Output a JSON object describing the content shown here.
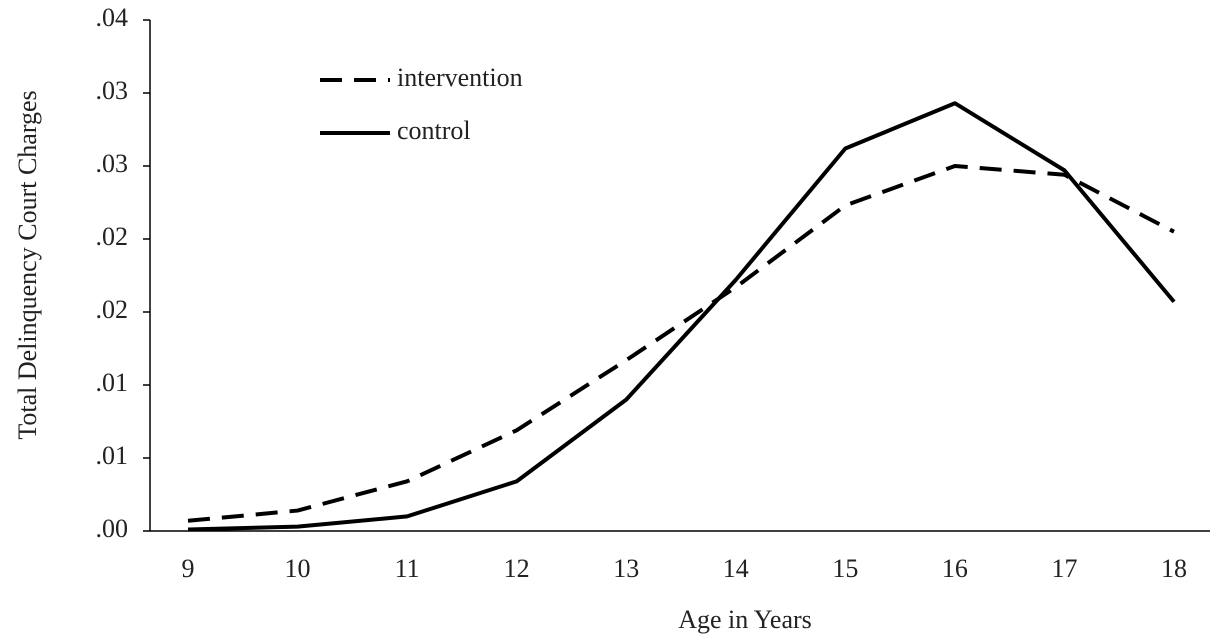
{
  "chart_data": {
    "type": "line",
    "xlabel": "Age in Years",
    "ylabel": "Total Delinquency Court Charges",
    "categories": [
      "9",
      "10",
      "11",
      "12",
      "13",
      "14",
      "15",
      "16",
      "17",
      "18"
    ],
    "series": [
      {
        "name": "intervention",
        "color": "#000000",
        "style": "dashed",
        "values": [
          0.0007,
          0.0014,
          0.0034,
          0.0069,
          0.0117,
          0.0167,
          0.0223,
          0.025,
          0.0244,
          0.0205
        ]
      },
      {
        "name": "control",
        "color": "#000000",
        "style": "solid",
        "values": [
          0.0001,
          0.0003,
          0.001,
          0.0034,
          0.009,
          0.0172,
          0.0262,
          0.0293,
          0.0247,
          0.0157
        ]
      }
    ],
    "ylim": [
      0,
      0.035
    ],
    "yticks": [
      {
        "value": 0,
        "label": ".00"
      },
      {
        "value": 0.005,
        "label": ".01"
      },
      {
        "value": 0.01,
        "label": ".01"
      },
      {
        "value": 0.015,
        "label": ".02"
      },
      {
        "value": 0.02,
        "label": ".02"
      },
      {
        "value": 0.025,
        "label": ".03"
      },
      {
        "value": 0.03,
        "label": ".03"
      },
      {
        "value": 0.035,
        "label": ".04"
      }
    ],
    "legend": "upper left"
  }
}
